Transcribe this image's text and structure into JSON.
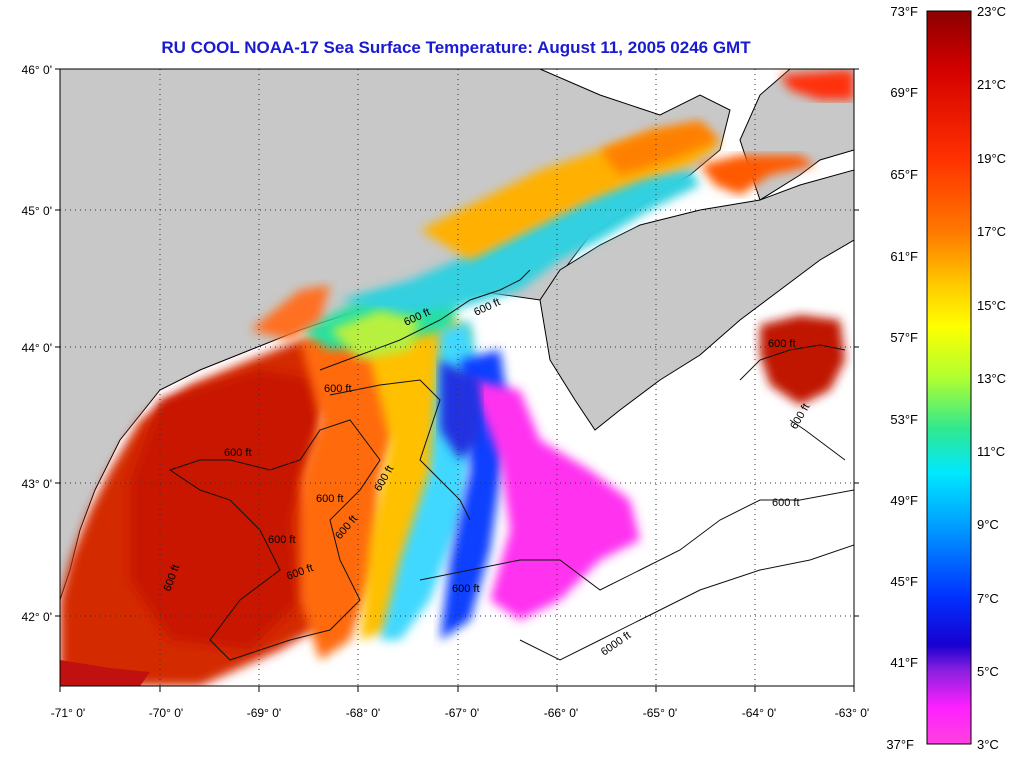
{
  "title": "RU COOL  NOAA-17  Sea Surface Temperature:  August 11, 2005 0246 GMT",
  "map": {
    "lat_labels": [
      "46° 0'",
      "45° 0'",
      "44° 0'",
      "43° 0'",
      "42° 0'"
    ],
    "lon_labels": [
      "-71° 0'",
      "-70° 0'",
      "-69° 0'",
      "-68° 0'",
      "-67° 0'",
      "-66° 0'",
      "-65° 0'",
      "-64° 0'",
      "-63° 0'"
    ],
    "lat_range": [
      41.5,
      46.0
    ],
    "lon_range": [
      -71.0,
      -63.0
    ],
    "grid": true,
    "land_color": "#c8c8c8",
    "no_data_color": "#ffffff"
  },
  "isobath_labels": [
    "600 ft",
    "600 ft",
    "600 ft",
    "600 ft",
    "600 ft",
    "600 ft",
    "600 ft",
    "600 ft",
    "600 ft",
    "600 ft",
    "600 ft",
    "600 ft",
    "6000 ft",
    "600 ft",
    "600 ft"
  ],
  "colorbar": {
    "fahrenheit": [
      "73°F",
      "69°F",
      "65°F",
      "61°F",
      "57°F",
      "53°F",
      "49°F",
      "45°F",
      "41°F",
      "37°F"
    ],
    "celsius": [
      "23°C",
      "21°C",
      "19°C",
      "17°C",
      "15°C",
      "13°C",
      "11°C",
      "9°C",
      "7°C",
      "5°C",
      "3°C"
    ],
    "stops": [
      "#8b0000",
      "#d40000",
      "#ff3000",
      "#ff7800",
      "#ffd000",
      "#ffff00",
      "#b0ff30",
      "#30e890",
      "#00e8ff",
      "#00a0ff",
      "#0030ff",
      "#2000c0",
      "#9020e0",
      "#ff20ff",
      "#ff40e0"
    ]
  }
}
